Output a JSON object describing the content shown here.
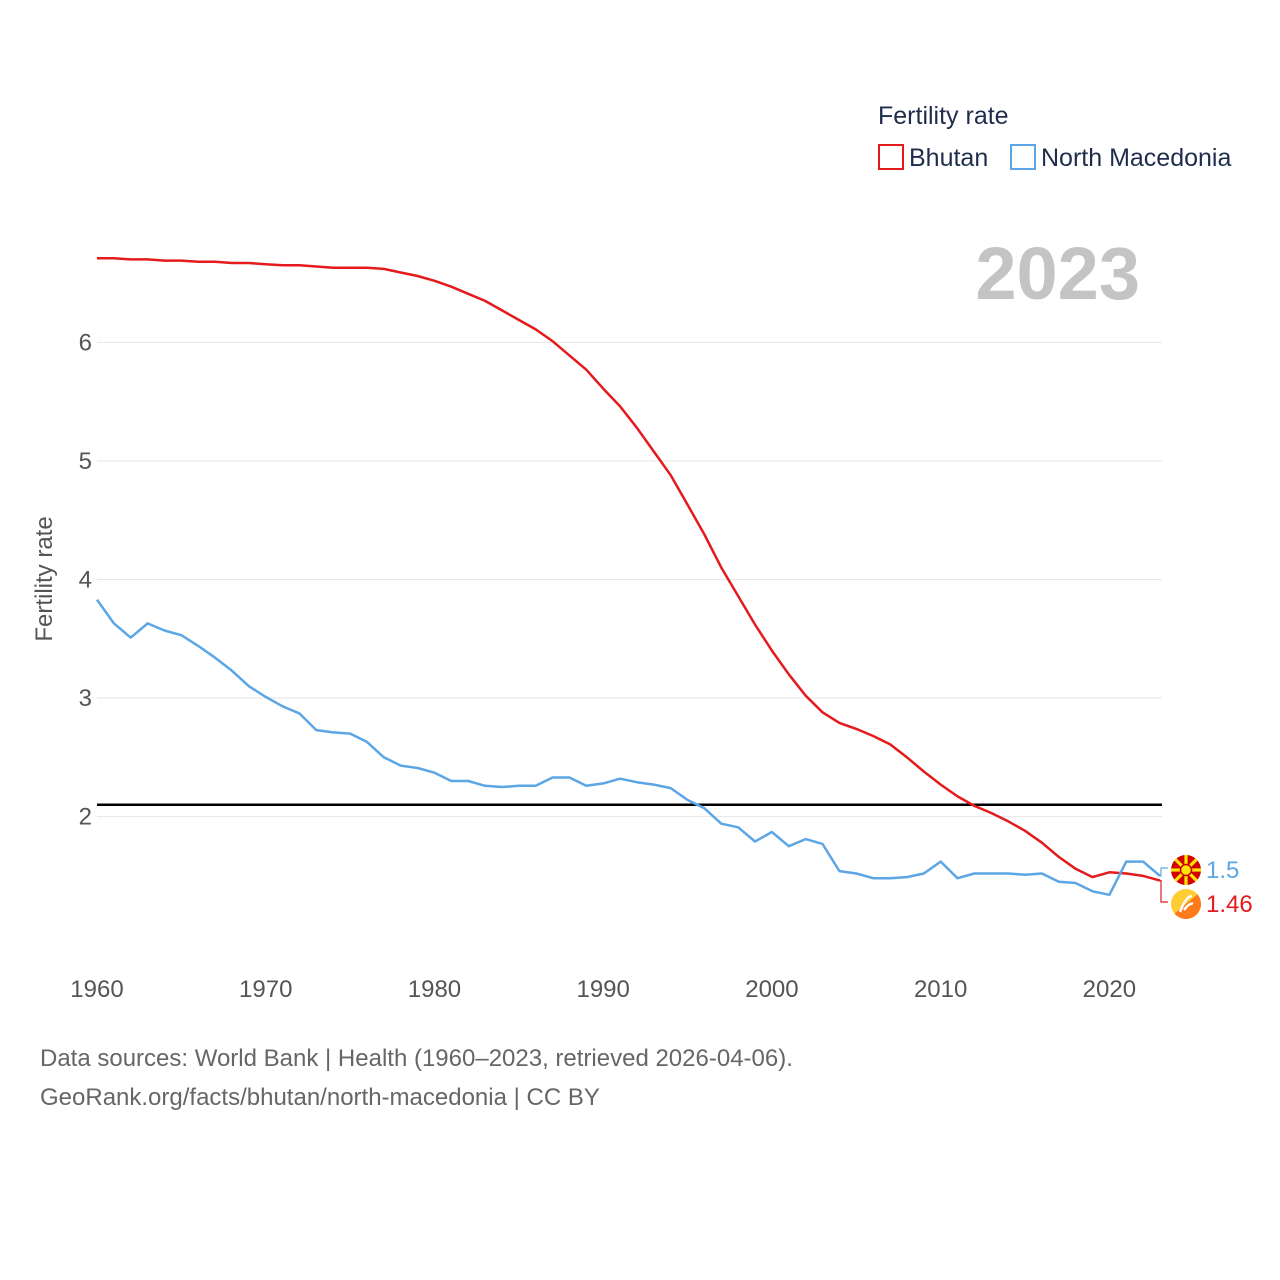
{
  "chart_data": {
    "type": "line",
    "title": "",
    "xlabel": "",
    "ylabel": "Fertility rate",
    "legend_title": "Fertility rate",
    "legend_position": "top-right",
    "current_year": "2023",
    "xlim": [
      1960,
      2023
    ],
    "ylim": [
      0.9,
      7.1
    ],
    "x_ticks": [
      1960,
      1970,
      1980,
      1990,
      2000,
      2010,
      2020
    ],
    "y_ticks": [
      2,
      3,
      4,
      5,
      6
    ],
    "reference_line": {
      "y": 2.1,
      "color": "#000000"
    },
    "x": [
      1960,
      1961,
      1962,
      1963,
      1964,
      1965,
      1966,
      1967,
      1968,
      1969,
      1970,
      1971,
      1972,
      1973,
      1974,
      1975,
      1976,
      1977,
      1978,
      1979,
      1980,
      1981,
      1982,
      1983,
      1984,
      1985,
      1986,
      1987,
      1988,
      1989,
      1990,
      1991,
      1992,
      1993,
      1994,
      1995,
      1996,
      1997,
      1998,
      1999,
      2000,
      2001,
      2002,
      2003,
      2004,
      2005,
      2006,
      2007,
      2008,
      2009,
      2010,
      2011,
      2012,
      2013,
      2014,
      2015,
      2016,
      2017,
      2018,
      2019,
      2020,
      2021,
      2022,
      2023
    ],
    "series": [
      {
        "name": "Bhutan",
        "color": "#e41a1c",
        "end_label": "1.46",
        "flag_icon": "bhutan-flag-icon",
        "values": [
          6.71,
          6.71,
          6.7,
          6.7,
          6.69,
          6.69,
          6.68,
          6.68,
          6.67,
          6.67,
          6.66,
          6.65,
          6.65,
          6.64,
          6.63,
          6.63,
          6.63,
          6.62,
          6.59,
          6.56,
          6.52,
          6.47,
          6.41,
          6.35,
          6.27,
          6.19,
          6.11,
          6.01,
          5.89,
          5.77,
          5.61,
          5.46,
          5.28,
          5.08,
          4.88,
          4.63,
          4.38,
          4.1,
          3.86,
          3.62,
          3.4,
          3.2,
          3.02,
          2.88,
          2.79,
          2.74,
          2.68,
          2.61,
          2.5,
          2.38,
          2.27,
          2.17,
          2.09,
          2.03,
          1.96,
          1.88,
          1.78,
          1.66,
          1.56,
          1.49,
          1.53,
          1.52,
          1.5,
          1.46
        ]
      },
      {
        "name": "North Macedonia",
        "color": "#5ca6e6",
        "end_label": "1.5",
        "flag_icon": "north-macedonia-flag-icon",
        "values": [
          3.83,
          3.63,
          3.51,
          3.63,
          3.57,
          3.53,
          3.44,
          3.34,
          3.23,
          3.1,
          3.01,
          2.93,
          2.87,
          2.73,
          2.71,
          2.7,
          2.63,
          2.5,
          2.43,
          2.41,
          2.37,
          2.3,
          2.3,
          2.26,
          2.25,
          2.26,
          2.26,
          2.33,
          2.33,
          2.26,
          2.28,
          2.32,
          2.29,
          2.27,
          2.24,
          2.14,
          2.07,
          1.94,
          1.91,
          1.79,
          1.87,
          1.75,
          1.81,
          1.77,
          1.54,
          1.52,
          1.48,
          1.48,
          1.49,
          1.52,
          1.62,
          1.48,
          1.52,
          1.52,
          1.52,
          1.51,
          1.52,
          1.45,
          1.44,
          1.37,
          1.34,
          1.62,
          1.62,
          1.5
        ]
      }
    ]
  },
  "footer": {
    "line1": "Data sources: World Bank | Health (1960–2023, retrieved 2026-04-06).",
    "line2": "GeoRank.org/facts/bhutan/north-macedonia | CC BY"
  }
}
